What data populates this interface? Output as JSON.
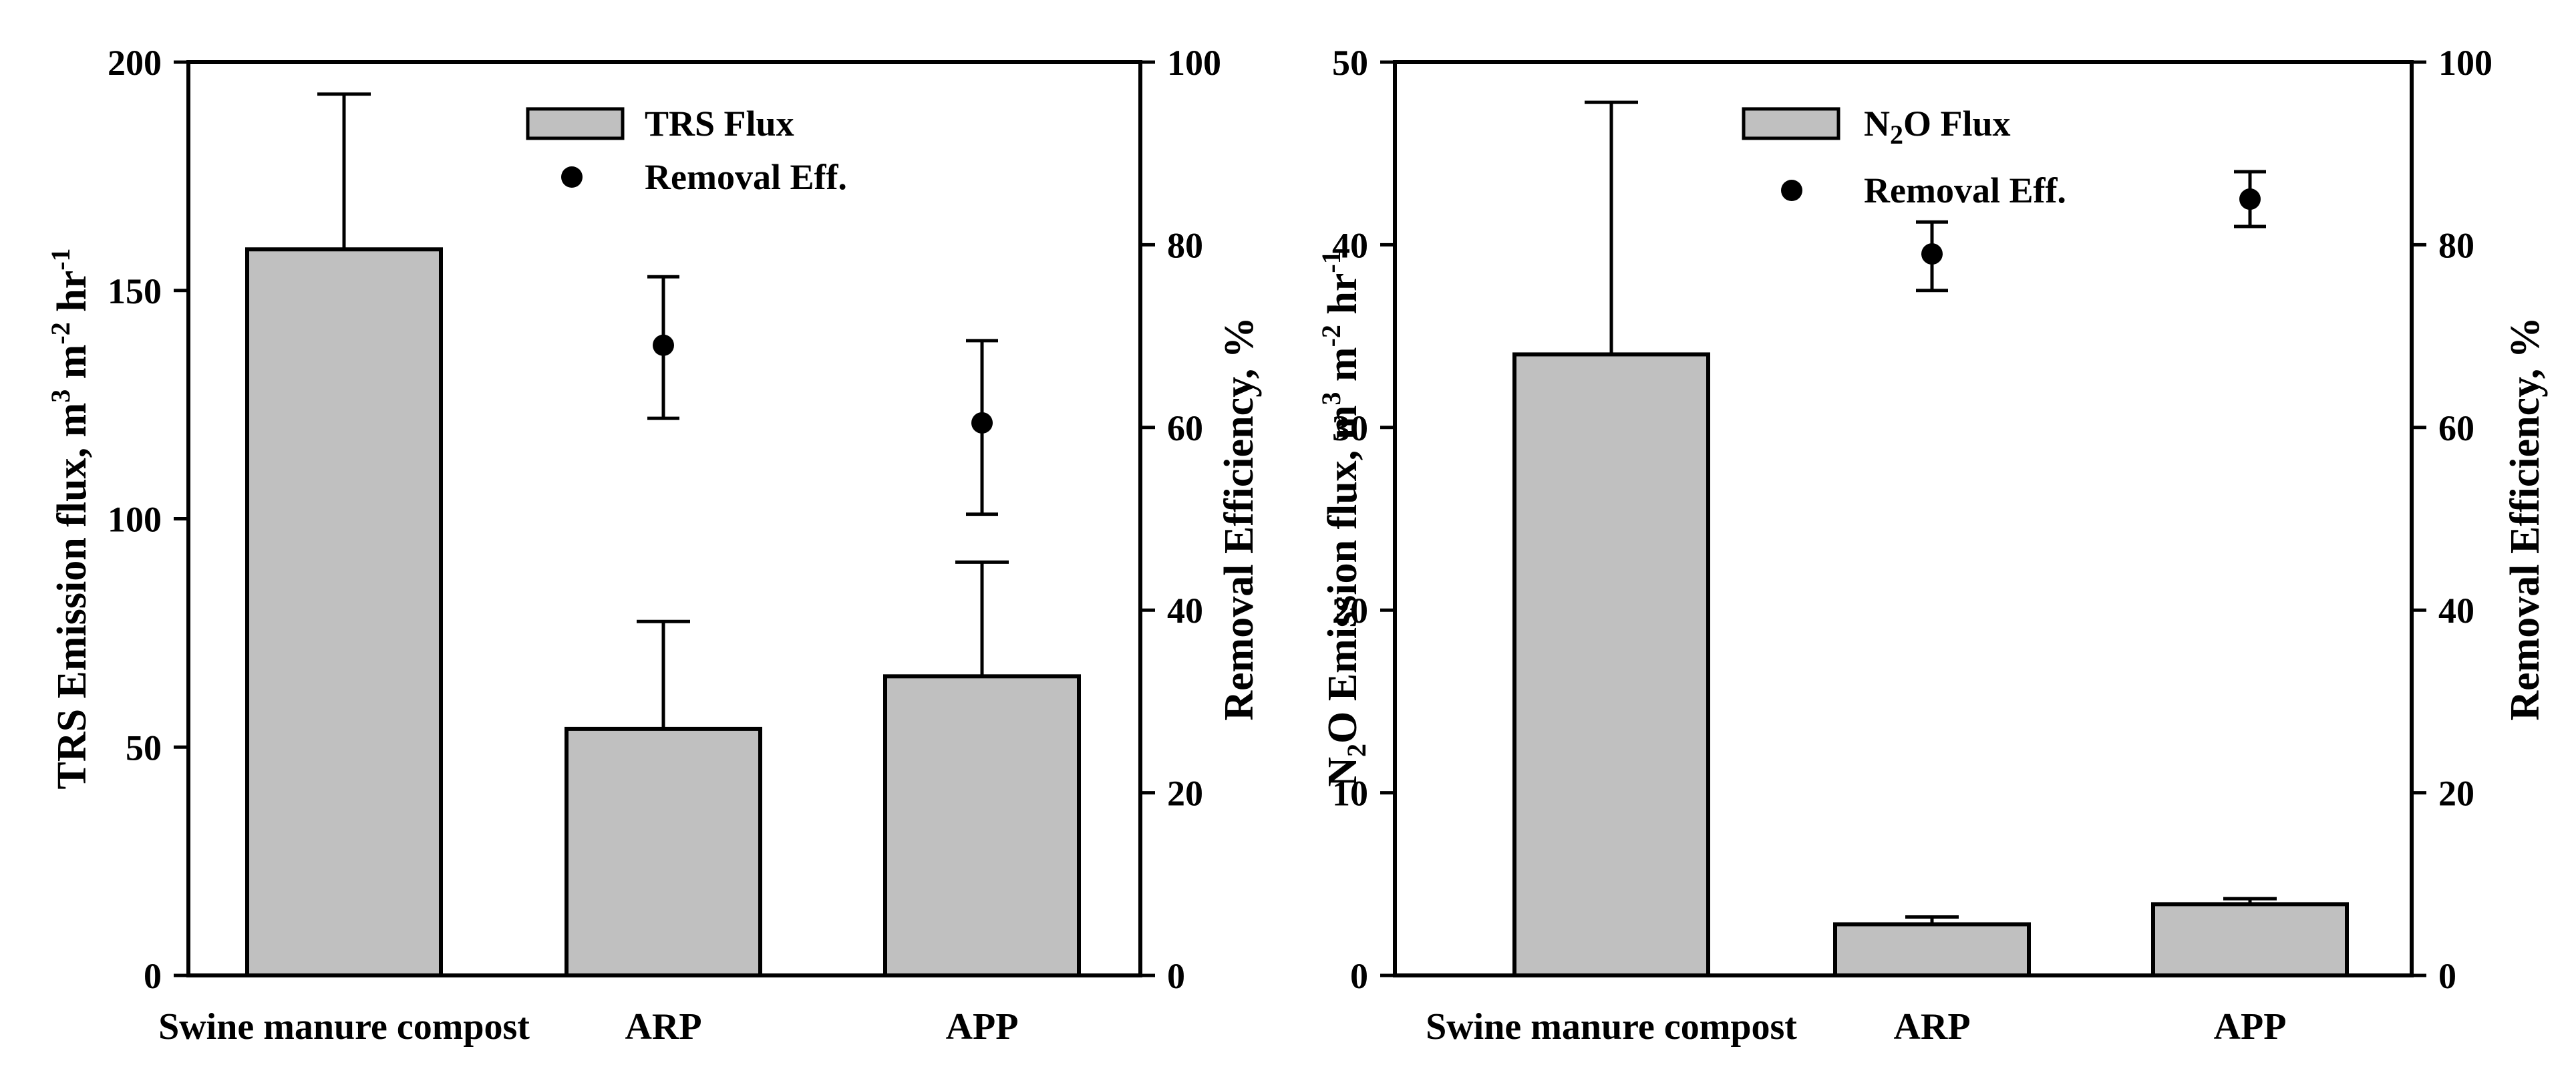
{
  "chart_data": [
    {
      "type": "bar",
      "categories": [
        "Swine manure compost",
        "ARP",
        "APP"
      ],
      "series": [
        {
          "name": "TRS Flux",
          "axis": "left",
          "mark": "bar",
          "values": [
            159,
            54,
            65.5
          ],
          "error_upper": [
            193,
            77.5,
            90.5
          ]
        },
        {
          "name": "Removal Eff.",
          "axis": "right",
          "mark": "point",
          "values": [
            null,
            69,
            60.5
          ],
          "error_low": [
            null,
            61,
            50.5
          ],
          "error_high": [
            null,
            76.5,
            69.5
          ]
        }
      ],
      "ylim": [
        0,
        200
      ],
      "yticks": [
        0,
        50,
        100,
        150,
        200
      ],
      "y2lim": [
        0,
        100
      ],
      "y2ticks": [
        0,
        20,
        40,
        60,
        80,
        100
      ],
      "ylabel": {
        "main": "TRS Emission flux, m",
        "unit_mid": " m",
        "unit_end": " hr",
        "sup1": "3",
        "sup2": "-2",
        "sup3": "-1"
      },
      "y2label": "Removal Efficiency, %",
      "legend": {
        "bar_label": "TRS Flux",
        "point_label": "Removal Eff.",
        "position": "top-center"
      },
      "grid": false
    },
    {
      "type": "bar",
      "categories": [
        "Swine manure compost",
        "ARP",
        "APP"
      ],
      "series": [
        {
          "name": "N2O Flux",
          "axis": "left",
          "mark": "bar",
          "values": [
            34,
            2.8,
            3.9
          ],
          "error_upper": [
            47.8,
            3.2,
            4.2
          ]
        },
        {
          "name": "Removal Eff.",
          "axis": "right",
          "mark": "point",
          "values": [
            null,
            79,
            85
          ],
          "error_low": [
            null,
            75,
            82
          ],
          "error_high": [
            null,
            82.5,
            88
          ]
        }
      ],
      "ylim": [
        0,
        50
      ],
      "yticks": [
        0,
        10,
        20,
        30,
        40,
        50
      ],
      "y2lim": [
        0,
        100
      ],
      "y2ticks": [
        0,
        20,
        40,
        60,
        80,
        100
      ],
      "ylabel": {
        "pre": "N",
        "pre_sub": "2",
        "main": "O Emission flux, m",
        "unit_mid": " m",
        "unit_end": " hr",
        "sup1": "3",
        "sup2": "-2",
        "sup3": "-1"
      },
      "y2label": "Removal Efficiency, %",
      "legend": {
        "bar_pre": "N",
        "bar_sub": "2",
        "bar_post": "O Flux",
        "point_label": "Removal Eff.",
        "position": "top-center"
      },
      "grid": false
    }
  ],
  "colors": {
    "bar_fill": "#c0c0c0",
    "stroke": "#000000",
    "background": "#ffffff"
  }
}
